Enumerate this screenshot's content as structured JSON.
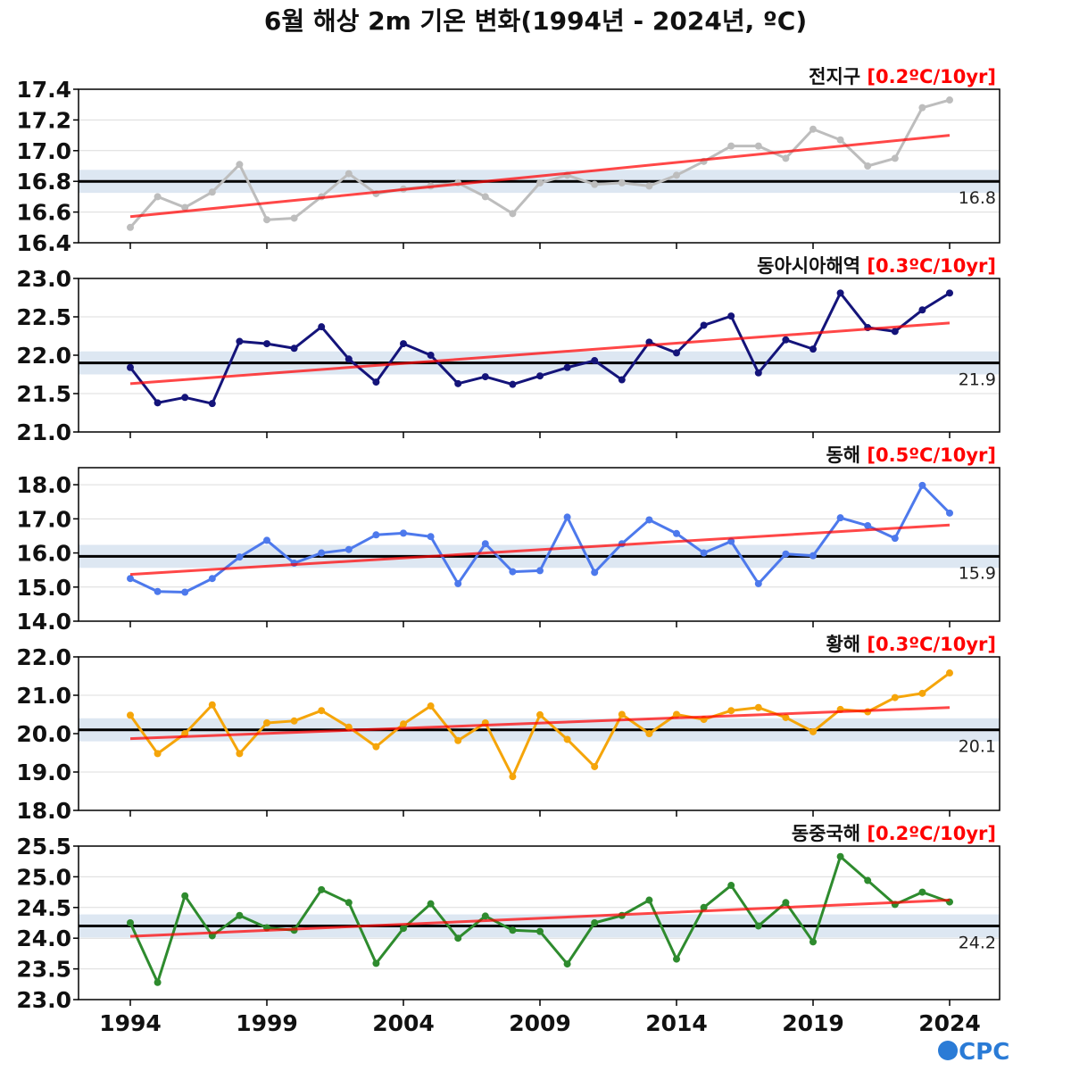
{
  "title": "6월 해상 2m 기온 변화(1994년 - 2024년, ºC)",
  "logo": "OCPC",
  "chart_data": [
    {
      "type": "line",
      "name": "전지구",
      "trend_label": "[0.2ºC/10yr]",
      "color": "#bdbdbd",
      "x": [
        1994,
        1995,
        1996,
        1997,
        1998,
        1999,
        2000,
        2001,
        2002,
        2003,
        2004,
        2005,
        2006,
        2007,
        2008,
        2009,
        2010,
        2011,
        2012,
        2013,
        2014,
        2015,
        2016,
        2017,
        2018,
        2019,
        2020,
        2021,
        2022,
        2023,
        2024
      ],
      "values": [
        16.5,
        16.7,
        16.63,
        16.73,
        16.91,
        16.55,
        16.56,
        16.7,
        16.85,
        16.72,
        16.75,
        16.77,
        16.79,
        16.7,
        16.59,
        16.79,
        16.84,
        16.78,
        16.79,
        16.77,
        16.84,
        16.93,
        17.03,
        17.03,
        16.95,
        17.14,
        17.07,
        16.9,
        16.95,
        17.28,
        17.33
      ],
      "normal": 16.8,
      "normal_label": "16.8",
      "trend": [
        16.57,
        17.1
      ],
      "ylim": [
        16.4,
        17.4
      ],
      "yticks": [
        "16.4",
        "16.6",
        "16.8",
        "17.0",
        "17.2",
        "17.4"
      ]
    },
    {
      "type": "line",
      "name": "동아시아해역",
      "trend_label": "[0.3ºC/10yr]",
      "color": "#14147a",
      "x": [
        1994,
        1995,
        1996,
        1997,
        1998,
        1999,
        2000,
        2001,
        2002,
        2003,
        2004,
        2005,
        2006,
        2007,
        2008,
        2009,
        2010,
        2011,
        2012,
        2013,
        2014,
        2015,
        2016,
        2017,
        2018,
        2019,
        2020,
        2021,
        2022,
        2023,
        2024
      ],
      "values": [
        21.84,
        21.38,
        21.45,
        21.37,
        22.18,
        22.15,
        22.09,
        22.37,
        21.95,
        21.65,
        22.15,
        22.0,
        21.63,
        21.72,
        21.62,
        21.73,
        21.84,
        21.93,
        21.68,
        22.17,
        22.03,
        22.39,
        22.51,
        21.77,
        22.2,
        22.08,
        22.81,
        22.36,
        22.31,
        22.59,
        22.81
      ],
      "normal": 21.9,
      "normal_label": "21.9",
      "trend": [
        21.63,
        22.42
      ],
      "ylim": [
        21.0,
        23.0
      ],
      "yticks": [
        "21.0",
        "21.5",
        "22.0",
        "22.5",
        "23.0"
      ]
    },
    {
      "type": "line",
      "name": "동해",
      "trend_label": "[0.5ºC/10yr]",
      "color": "#4d79ec",
      "x": [
        1994,
        1995,
        1996,
        1997,
        1998,
        1999,
        2000,
        2001,
        2002,
        2003,
        2004,
        2005,
        2006,
        2007,
        2008,
        2009,
        2010,
        2011,
        2012,
        2013,
        2014,
        2015,
        2016,
        2017,
        2018,
        2019,
        2020,
        2021,
        2022,
        2023,
        2024
      ],
      "values": [
        15.25,
        14.87,
        14.85,
        15.25,
        15.88,
        16.37,
        15.7,
        16.0,
        16.1,
        16.53,
        16.58,
        16.48,
        15.1,
        16.27,
        15.45,
        15.48,
        17.05,
        15.43,
        16.27,
        16.97,
        16.57,
        16.0,
        16.34,
        15.1,
        15.97,
        15.92,
        17.03,
        16.8,
        16.43,
        17.98,
        17.17
      ],
      "normal": 15.9,
      "normal_label": "15.9",
      "trend": [
        15.37,
        16.82
      ],
      "ylim": [
        14.0,
        18.5
      ],
      "yticks": [
        "14.0",
        "15.0",
        "16.0",
        "17.0",
        "18.0"
      ]
    },
    {
      "type": "line",
      "name": "황해",
      "trend_label": "[0.3ºC/10yr]",
      "color": "#f5a50a",
      "x": [
        1994,
        1995,
        1996,
        1997,
        1998,
        1999,
        2000,
        2001,
        2002,
        2003,
        2004,
        2005,
        2006,
        2007,
        2008,
        2009,
        2010,
        2011,
        2012,
        2013,
        2014,
        2015,
        2016,
        2017,
        2018,
        2019,
        2020,
        2021,
        2022,
        2023,
        2024
      ],
      "values": [
        20.48,
        19.48,
        20.0,
        20.75,
        19.48,
        20.28,
        20.33,
        20.6,
        20.17,
        19.66,
        20.25,
        20.72,
        19.82,
        20.28,
        18.88,
        20.49,
        19.85,
        19.14,
        20.5,
        20.0,
        20.5,
        20.37,
        20.6,
        20.68,
        20.42,
        20.05,
        20.63,
        20.57,
        20.94,
        21.05,
        21.58
      ],
      "normal": 20.1,
      "normal_label": "20.1",
      "trend": [
        19.87,
        20.68
      ],
      "ylim": [
        18.0,
        22.0
      ],
      "yticks": [
        "18.0",
        "19.0",
        "20.0",
        "21.0",
        "22.0"
      ]
    },
    {
      "type": "line",
      "name": "동중국해",
      "trend_label": "[0.2ºC/10yr]",
      "color": "#2e8b2e",
      "x": [
        1994,
        1995,
        1996,
        1997,
        1998,
        1999,
        2000,
        2001,
        2002,
        2003,
        2004,
        2005,
        2006,
        2007,
        2008,
        2009,
        2010,
        2011,
        2012,
        2013,
        2014,
        2015,
        2016,
        2017,
        2018,
        2019,
        2020,
        2021,
        2022,
        2023,
        2024
      ],
      "values": [
        24.25,
        23.28,
        24.69,
        24.04,
        24.37,
        24.17,
        24.13,
        24.79,
        24.58,
        23.59,
        24.16,
        24.56,
        24.0,
        24.36,
        24.13,
        24.11,
        23.58,
        24.25,
        24.37,
        24.62,
        23.66,
        24.5,
        24.86,
        24.2,
        24.58,
        23.94,
        25.33,
        24.94,
        24.55,
        24.75,
        24.59
      ],
      "normal": 24.2,
      "normal_label": "24.2",
      "trend": [
        24.03,
        24.62
      ],
      "ylim": [
        23.0,
        25.5
      ],
      "yticks": [
        "23.0",
        "23.5",
        "24.0",
        "24.5",
        "25.0",
        "25.5"
      ]
    }
  ],
  "xticks": [
    "1994",
    "1999",
    "2004",
    "2009",
    "2014",
    "2019",
    "2024"
  ]
}
